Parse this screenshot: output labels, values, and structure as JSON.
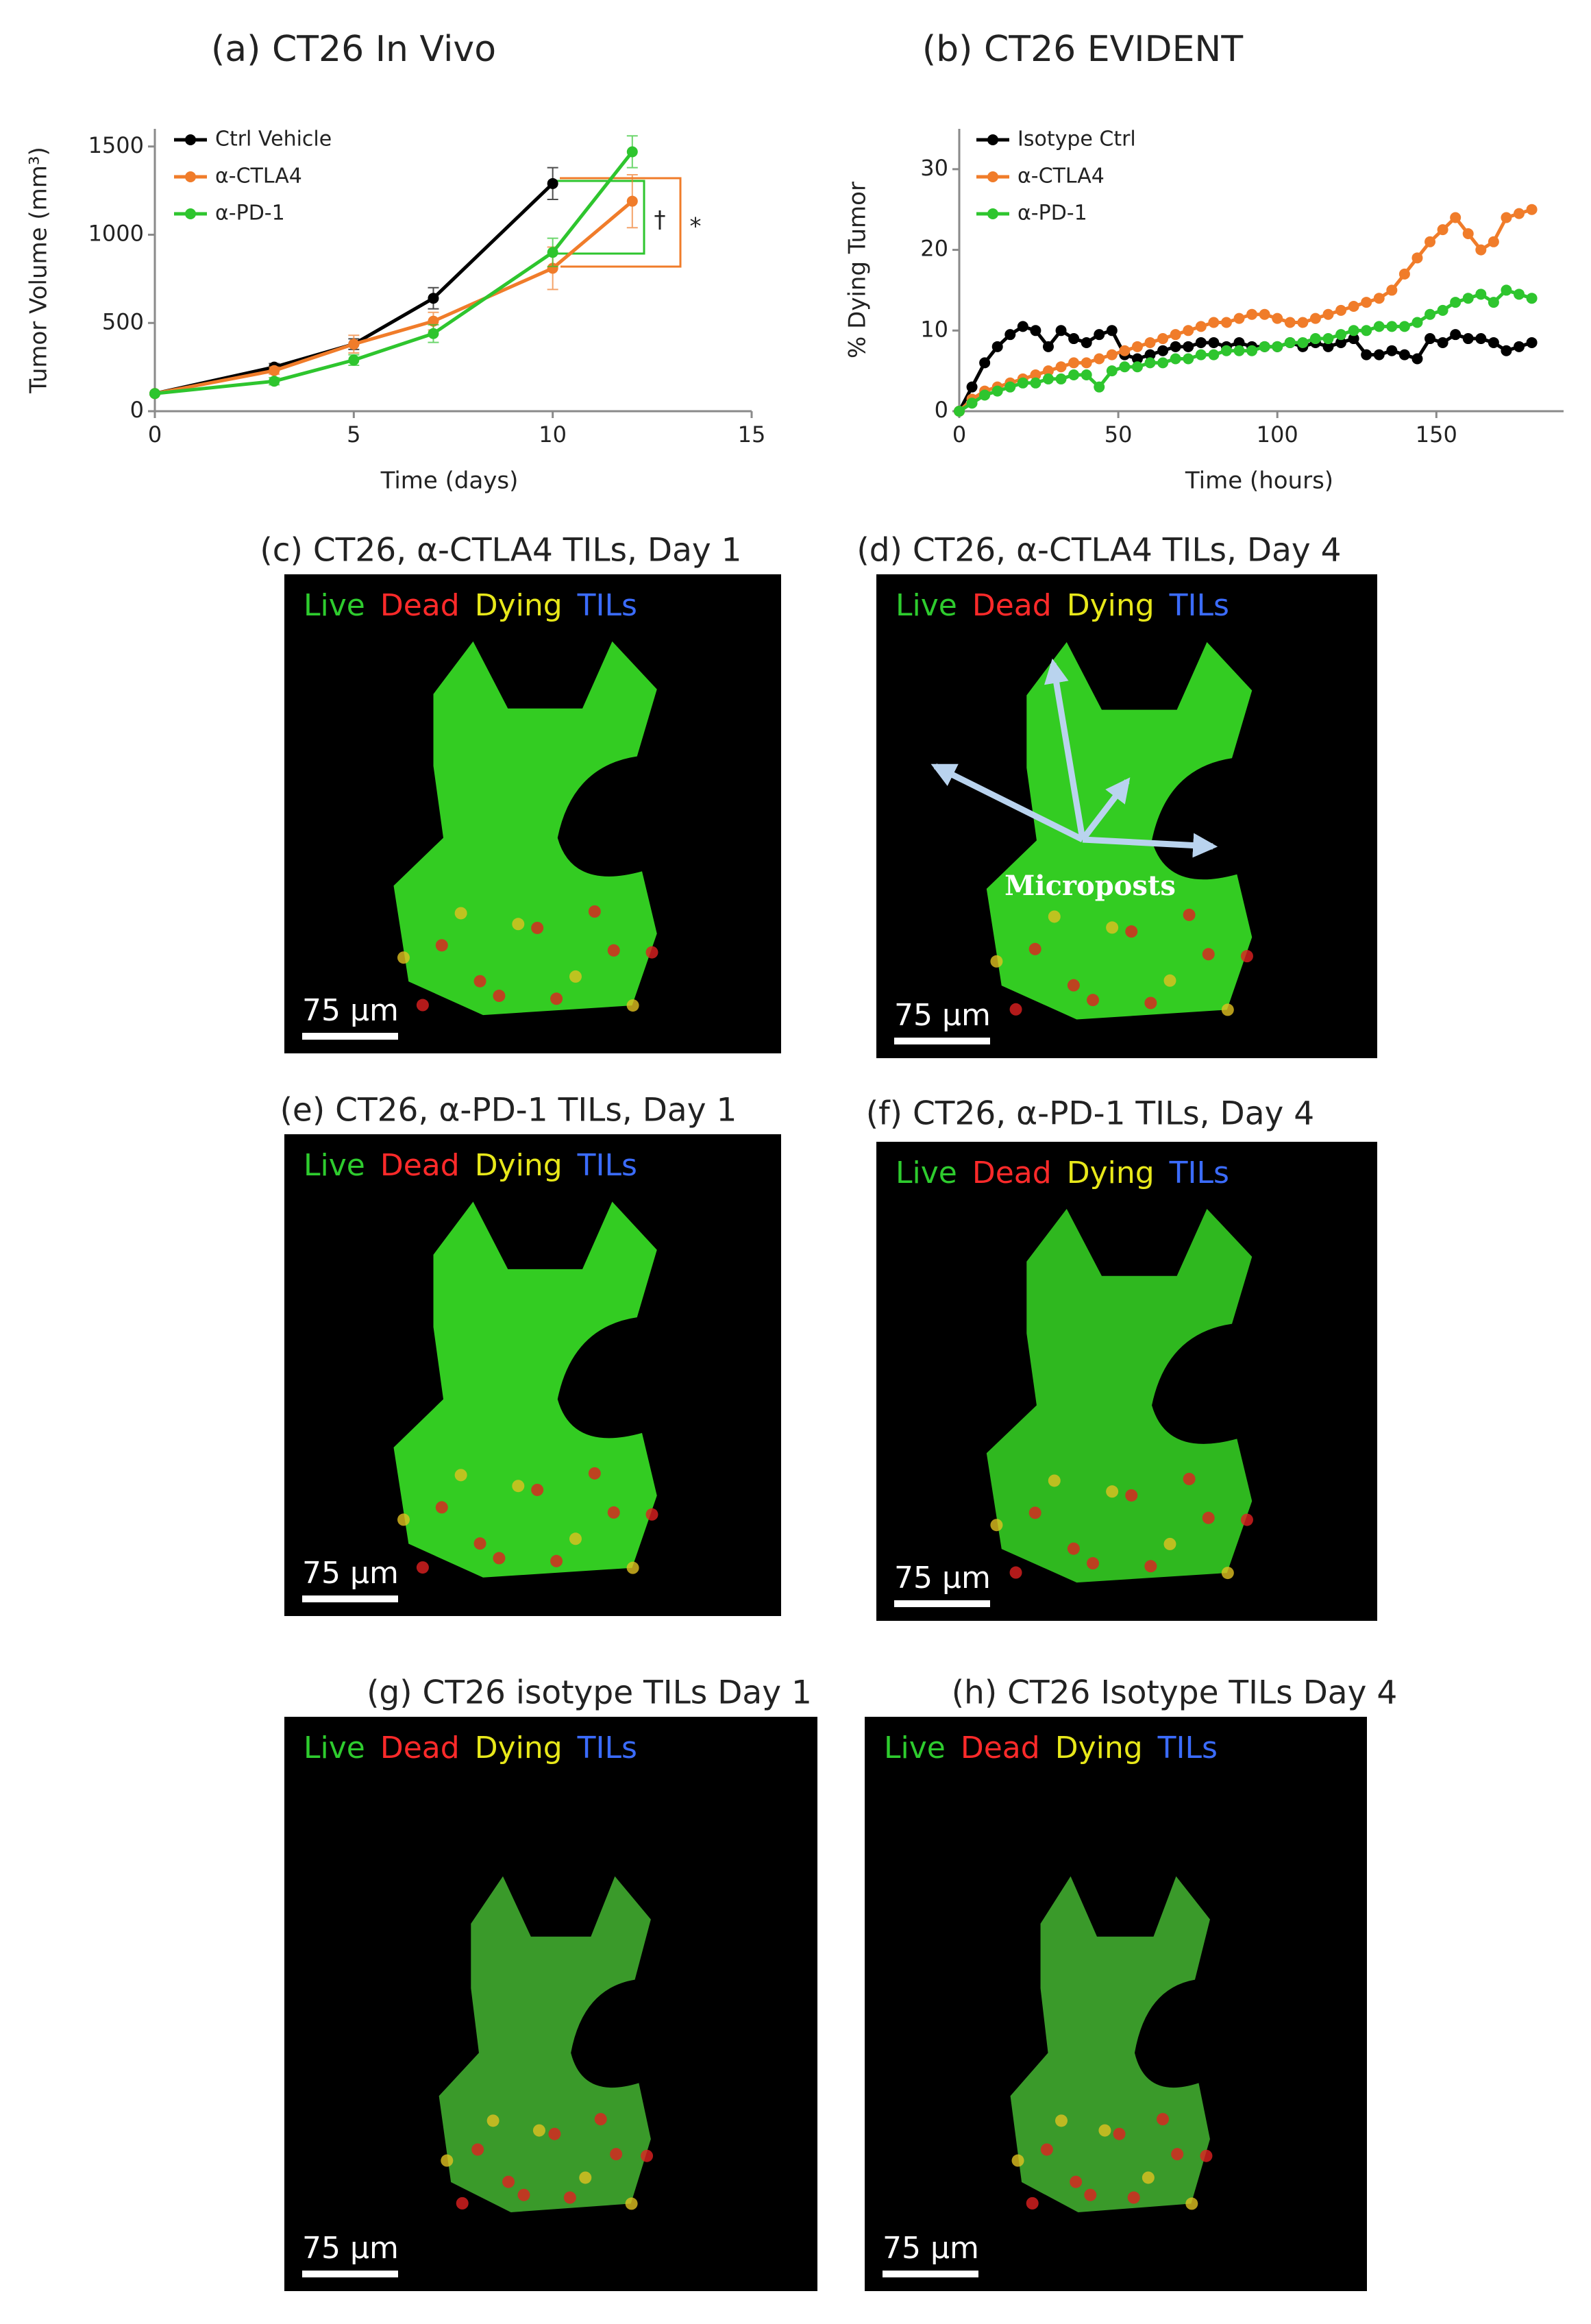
{
  "chart_data": [
    {
      "type": "line",
      "title": "(a) CT26 In Vivo",
      "x_label": "Time (days)",
      "y_label": "Tumor Volume (mm³)",
      "x": [
        0,
        3,
        5,
        7,
        10,
        12
      ],
      "series": [
        {
          "name": "Ctrl Vehicle",
          "color": "#000000",
          "values": [
            100,
            250,
            380,
            640,
            1290,
            null
          ],
          "errors": [
            0,
            20,
            30,
            60,
            90,
            null
          ]
        },
        {
          "name": "α-CTLA4",
          "color": "#f07c2a",
          "values": [
            100,
            230,
            380,
            510,
            810,
            1190
          ],
          "errors": [
            0,
            20,
            50,
            50,
            120,
            150
          ]
        },
        {
          "name": "α-PD-1",
          "color": "#2ec52e",
          "values": [
            100,
            170,
            290,
            440,
            900,
            1470
          ],
          "errors": [
            0,
            20,
            30,
            50,
            80,
            90
          ]
        }
      ],
      "xlim": [
        0,
        15
      ],
      "xticks": [
        0,
        5,
        10,
        15
      ],
      "ylim": [
        0,
        1600
      ],
      "yticks": [
        0,
        500,
        1000,
        1500
      ],
      "legend": "upper left",
      "annotations": [
        "†",
        "*"
      ]
    },
    {
      "type": "line",
      "title": "(b) CT26 EVIDENT",
      "x_label": "Time (hours)",
      "y_label": "% Dying Tumor",
      "x": [
        0,
        4,
        8,
        12,
        16,
        20,
        24,
        28,
        32,
        36,
        40,
        44,
        48,
        52,
        56,
        60,
        64,
        68,
        72,
        76,
        80,
        84,
        88,
        92,
        96,
        100,
        104,
        108,
        112,
        116,
        120,
        124,
        128,
        132,
        136,
        140,
        144,
        148,
        152,
        156,
        160,
        164,
        168,
        172,
        176,
        180
      ],
      "series": [
        {
          "name": "Isotype Ctrl",
          "color": "#000000",
          "values": [
            0,
            3,
            6,
            8,
            9.5,
            10.5,
            10,
            8,
            10,
            9,
            8.5,
            9.5,
            10,
            7,
            6.5,
            7,
            7.5,
            8,
            8,
            8.5,
            8.5,
            8,
            8.5,
            8,
            8,
            8,
            8.5,
            8,
            8.5,
            8,
            8.5,
            9,
            7,
            7,
            7.5,
            7,
            6.5,
            9,
            8.5,
            9.5,
            9,
            9,
            8.5,
            7.5,
            8,
            8.5
          ]
        },
        {
          "name": "α-CTLA4",
          "color": "#f07c2a",
          "values": [
            0,
            1.5,
            2.5,
            3,
            3.5,
            4,
            4.5,
            5,
            5.5,
            6,
            6,
            6.5,
            7,
            7.5,
            8,
            8.5,
            9,
            9.5,
            10,
            10.5,
            11,
            11,
            11.5,
            12,
            12,
            11.5,
            11,
            11,
            11.5,
            12,
            12.5,
            13,
            13.5,
            14,
            15,
            17,
            19,
            21,
            22.5,
            24,
            22,
            20,
            21,
            24,
            24.5,
            25
          ]
        },
        {
          "name": "α-PD-1",
          "color": "#2ec52e",
          "values": [
            0,
            1,
            2,
            2.5,
            3,
            3.5,
            3.5,
            4,
            4,
            4.5,
            4.5,
            3,
            5,
            5.5,
            5.5,
            6,
            6,
            6.5,
            6.5,
            7,
            7,
            7.5,
            7.5,
            7.5,
            8,
            8,
            8.5,
            8.5,
            9,
            9,
            9.5,
            10,
            10,
            10.5,
            10.5,
            10.5,
            11,
            12,
            12.5,
            13.5,
            14,
            14.5,
            13.5,
            15,
            14.5,
            14
          ]
        }
      ],
      "xlim": [
        0,
        190
      ],
      "xticks": [
        0,
        50,
        100,
        150
      ],
      "ylim": [
        0,
        35
      ],
      "yticks": [
        0,
        10,
        20,
        30
      ],
      "legend": "upper left"
    }
  ],
  "panels": [
    {
      "title": "(c) CT26, α-CTLA4 TILs, Day 1",
      "legend": [
        "Live",
        "Dead",
        "Dying",
        "TILs"
      ],
      "scale_bar": "75 µm"
    },
    {
      "title": "(d) CT26, α-CTLA4 TILs, Day 4",
      "legend": [
        "Live",
        "Dead",
        "Dying",
        "TILs"
      ],
      "scale_bar": "75 µm",
      "annotation": "Microposts"
    },
    {
      "title": "(e) CT26, α-PD-1 TILs, Day 1",
      "legend": [
        "Live",
        "Dead",
        "Dying",
        "TILs"
      ],
      "scale_bar": "75 µm"
    },
    {
      "title": "(f) CT26, α-PD-1 TILs, Day 4",
      "legend": [
        "Live",
        "Dead",
        "Dying",
        "TILs"
      ],
      "scale_bar": "75 µm"
    },
    {
      "title": "(g) CT26 isotype TILs Day 1",
      "legend": [
        "Live",
        "Dead",
        "Dying",
        "TILs"
      ],
      "scale_bar": "75 µm"
    },
    {
      "title": "(h) CT26 Isotype TILs Day 4",
      "legend": [
        "Live",
        "Dead",
        "Dying",
        "TILs"
      ],
      "scale_bar": "75 µm"
    }
  ]
}
